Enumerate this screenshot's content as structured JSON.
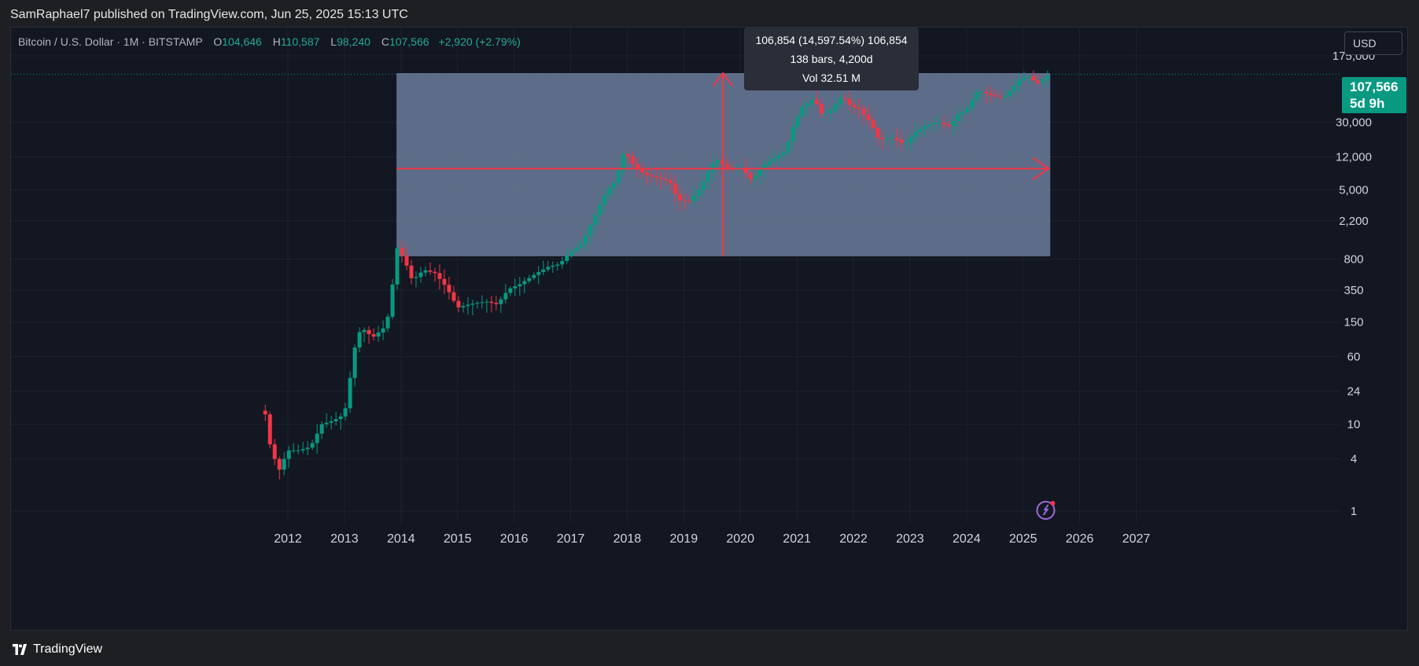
{
  "header": {
    "published_text": "SamRaphael7 published on TradingView.com, Jun 25, 2025 15:13 UTC"
  },
  "legend": {
    "symbol": "Bitcoin / U.S. Dollar · 1M · BITSTAMP",
    "open_label": "O",
    "open": "104,646",
    "high_label": "H",
    "high": "110,587",
    "low_label": "L",
    "low": "98,240",
    "close_label": "C",
    "close": "107,566",
    "change": "+2,920 (+2.79%)"
  },
  "currency_button": "USD",
  "last_price": {
    "price": "107,566",
    "countdown": "5d 9h"
  },
  "measure_tool": {
    "line1": "106,854 (14,597.54%) 106,854",
    "line2": "138 bars, 4,200d",
    "line3": "Vol 32.51 M"
  },
  "footer": {
    "brand": "TradingView"
  },
  "colors": {
    "up": "#089981",
    "down": "#f23645",
    "background": "#131722",
    "measure_fill": "#6b7b9a",
    "arrow": "#f23645"
  },
  "chart_data": {
    "type": "candlestick",
    "scale": "log",
    "y_ticks": [
      "175,000",
      "30,000",
      "12,000",
      "5,000",
      "2,200",
      "800",
      "350",
      "150",
      "60",
      "24",
      "10",
      "4",
      "1"
    ],
    "y_tick_values": [
      175000,
      30000,
      12000,
      5000,
      2200,
      800,
      350,
      150,
      60,
      24,
      10,
      4,
      1
    ],
    "x_ticks": [
      "2012",
      "2013",
      "2014",
      "2015",
      "2016",
      "2017",
      "2018",
      "2019",
      "2020",
      "2021",
      "2022",
      "2023",
      "2024",
      "2025",
      "2026",
      "2027"
    ],
    "x_tick_values": [
      2012,
      2013,
      2014,
      2015,
      2016,
      2017,
      2018,
      2019,
      2020,
      2021,
      2022,
      2023,
      2024,
      2025,
      2026,
      2027
    ],
    "anchors": [
      [
        2011.6,
        13
      ],
      [
        2011.7,
        5
      ],
      [
        2011.85,
        3
      ],
      [
        2012.0,
        5
      ],
      [
        2012.2,
        5
      ],
      [
        2012.4,
        5.5
      ],
      [
        2012.6,
        10
      ],
      [
        2012.8,
        11
      ],
      [
        2013.0,
        13
      ],
      [
        2013.2,
        90
      ],
      [
        2013.3,
        130
      ],
      [
        2013.5,
        100
      ],
      [
        2013.7,
        130
      ],
      [
        2013.8,
        200
      ],
      [
        2013.92,
        1100
      ],
      [
        2014.05,
        820
      ],
      [
        2014.2,
        450
      ],
      [
        2014.4,
        600
      ],
      [
        2014.6,
        550
      ],
      [
        2014.8,
        380
      ],
      [
        2015.0,
        220
      ],
      [
        2015.2,
        240
      ],
      [
        2015.5,
        260
      ],
      [
        2015.7,
        240
      ],
      [
        2015.9,
        360
      ],
      [
        2016.1,
        410
      ],
      [
        2016.4,
        550
      ],
      [
        2016.6,
        650
      ],
      [
        2016.8,
        700
      ],
      [
        2017.0,
        970
      ],
      [
        2017.2,
        1200
      ],
      [
        2017.4,
        2300
      ],
      [
        2017.6,
        4400
      ],
      [
        2017.8,
        6400
      ],
      [
        2017.95,
        14000
      ],
      [
        2018.1,
        10000
      ],
      [
        2018.3,
        7500
      ],
      [
        2018.5,
        7000
      ],
      [
        2018.75,
        6300
      ],
      [
        2018.9,
        3800
      ],
      [
        2019.1,
        3700
      ],
      [
        2019.3,
        5300
      ],
      [
        2019.5,
        10000
      ],
      [
        2019.6,
        11000
      ],
      [
        2019.8,
        8500
      ],
      [
        2020.0,
        9300
      ],
      [
        2020.2,
        6500
      ],
      [
        2020.4,
        9500
      ],
      [
        2020.6,
        11500
      ],
      [
        2020.8,
        14000
      ],
      [
        2020.95,
        28900
      ],
      [
        2021.1,
        45000
      ],
      [
        2021.3,
        57000
      ],
      [
        2021.45,
        36000
      ],
      [
        2021.6,
        41000
      ],
      [
        2021.8,
        61000
      ],
      [
        2021.95,
        46000
      ],
      [
        2022.1,
        43000
      ],
      [
        2022.3,
        30000
      ],
      [
        2022.45,
        19000
      ],
      [
        2022.7,
        20000
      ],
      [
        2022.9,
        16500
      ],
      [
        2023.1,
        23000
      ],
      [
        2023.3,
        28000
      ],
      [
        2023.5,
        30000
      ],
      [
        2023.7,
        27000
      ],
      [
        2023.85,
        37000
      ],
      [
        2024.0,
        42000
      ],
      [
        2024.2,
        70000
      ],
      [
        2024.45,
        61000
      ],
      [
        2024.65,
        58000
      ],
      [
        2024.8,
        72000
      ],
      [
        2024.95,
        96000
      ],
      [
        2025.1,
        102000
      ],
      [
        2025.25,
        83000
      ],
      [
        2025.35,
        94000
      ],
      [
        2025.45,
        104646
      ],
      [
        2025.5,
        107566
      ]
    ],
    "measure_range": {
      "x_start": 2013.92,
      "x_end": 2025.48,
      "y_low": 860,
      "y_high": 110587
    },
    "last_price_value": 107566
  }
}
